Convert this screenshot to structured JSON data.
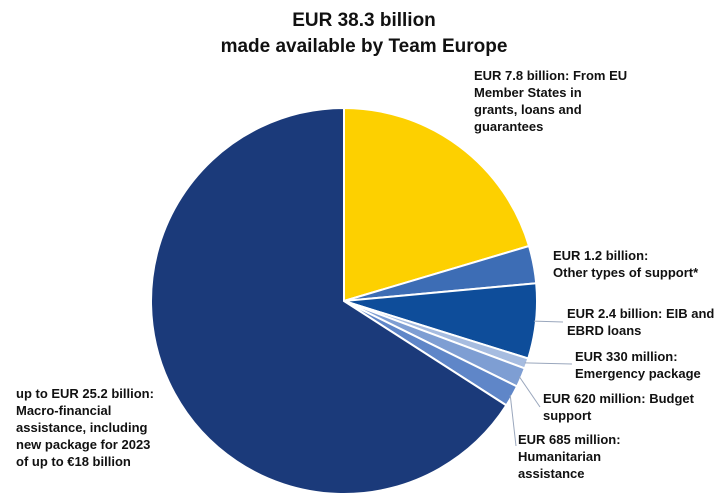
{
  "chart_data": {
    "type": "pie",
    "title": [
      "EUR 38.3 billion",
      "made available by Team Europe"
    ],
    "total": 38.3,
    "unit": "EUR billion",
    "slices": [
      {
        "value": 7.8,
        "color": "#FDD000",
        "label": [
          "EUR 7.8 billion: From EU",
          "Member States in",
          "grants, loans and",
          "guarantees"
        ]
      },
      {
        "value": 1.2,
        "color": "#3D6DB5",
        "label": [
          "EUR 1.2 billion:",
          "Other types of support*"
        ]
      },
      {
        "value": 2.4,
        "color": "#0E4D9A",
        "label": [
          "EUR 2.4 billion: EIB and",
          "EBRD loans"
        ]
      },
      {
        "value": 0.33,
        "color": "#A6BCE0",
        "label": [
          "EUR 330 million:",
          "Emergency package"
        ]
      },
      {
        "value": 0.62,
        "color": "#7E9ED3",
        "label": [
          "EUR 620 million: Budget",
          "support"
        ]
      },
      {
        "value": 0.685,
        "color": "#5F86C8",
        "label": [
          "EUR 685 million:",
          "Humanitarian",
          "assistance"
        ]
      },
      {
        "value": 25.2,
        "color": "#1B3A7A",
        "label": [
          "up to EUR 25.2 billion:",
          "Macro-financial",
          "assistance, including",
          "new package for 2023",
          "of up to €18 billion"
        ]
      }
    ]
  }
}
